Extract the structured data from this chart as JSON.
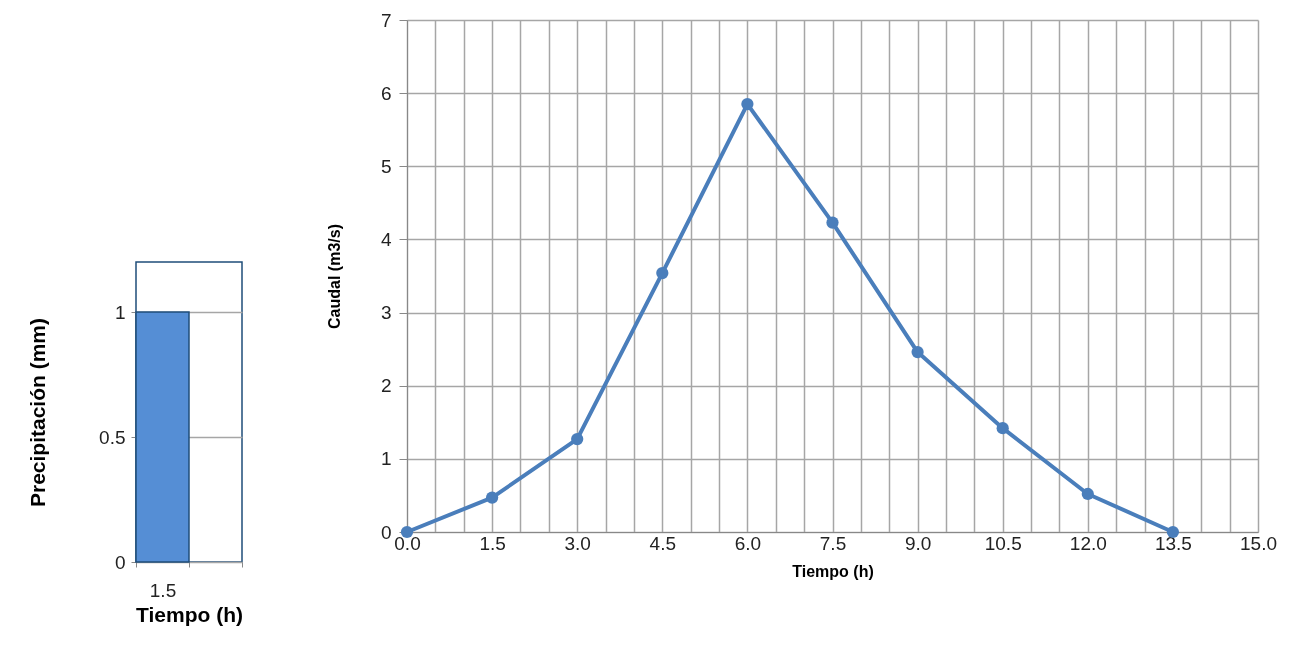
{
  "chart_data": [
    {
      "type": "bar",
      "categories": [
        "1.5",
        null
      ],
      "values": [
        1,
        null
      ],
      "color": "#558ed5",
      "xlabel": "Tiempo (h)",
      "ylabel": "Precipitación (mm)",
      "ylim": [
        0,
        1.2
      ],
      "yticks": [
        0,
        0.5,
        1
      ],
      "grid": "y"
    },
    {
      "type": "line",
      "x": [
        0,
        1.5,
        3,
        4.5,
        6,
        7.5,
        9,
        10.5,
        12,
        13.5
      ],
      "values": [
        0,
        0.47,
        1.27,
        3.54,
        5.85,
        4.23,
        2.46,
        1.42,
        0.52,
        0
      ],
      "color": "#4a7ebb",
      "marker": "circle",
      "xlabel": "Tiempo (h)",
      "ylabel": "Caudal (m3/s)",
      "xlim": [
        0,
        15
      ],
      "ylim": [
        0,
        7
      ],
      "xticks": [
        {
          "value": 0,
          "label": "0.0"
        },
        {
          "value": 0.5,
          "label": null
        },
        {
          "value": 1,
          "label": null
        },
        1.5,
        {
          "value": 2,
          "label": null
        },
        {
          "value": 2.5,
          "label": null
        },
        {
          "value": 3,
          "label": "3.0"
        },
        {
          "value": 3.5,
          "label": null
        },
        {
          "value": 4,
          "label": null
        },
        4.5,
        {
          "value": 5,
          "label": null
        },
        {
          "value": 5.5,
          "label": null
        },
        {
          "value": 6,
          "label": "6.0"
        },
        {
          "value": 6.5,
          "label": null
        },
        {
          "value": 7,
          "label": null
        },
        7.5,
        {
          "value": 8,
          "label": null
        },
        {
          "value": 8.5,
          "label": null
        },
        {
          "value": 9,
          "label": "9.0"
        },
        {
          "value": 9.5,
          "label": null
        },
        {
          "value": 10,
          "label": null
        },
        10.5,
        {
          "value": 11,
          "label": null
        },
        {
          "value": 11.5,
          "label": null
        },
        {
          "value": 12,
          "label": "12.0"
        },
        {
          "value": 12.5,
          "label": null
        },
        {
          "value": 13,
          "label": null
        },
        13.5,
        {
          "value": 14,
          "label": null
        },
        {
          "value": 14.5,
          "label": null
        },
        {
          "value": 15,
          "label": "15.0"
        }
      ],
      "yticks": [
        0,
        1,
        2,
        3,
        4,
        5,
        6,
        7
      ],
      "grid": true
    }
  ]
}
